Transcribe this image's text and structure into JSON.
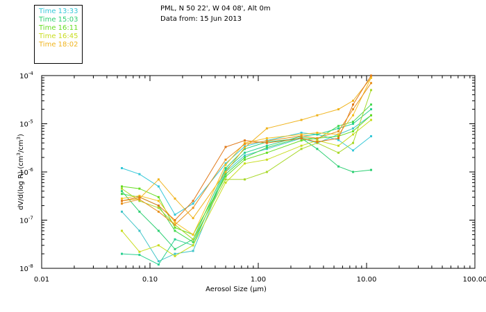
{
  "legend": [
    {
      "label": "Time 13:33",
      "color": "#35c8d8"
    },
    {
      "label": "Time 15:03",
      "color": "#2ccf72"
    },
    {
      "label": "Time 16:11",
      "color": "#66dd22"
    },
    {
      "label": "Time 16:45",
      "color": "#c8dc1e"
    },
    {
      "label": "Time 18:02",
      "color": "#f0b41e"
    }
  ],
  "header": {
    "location": "PML, N 50 22', W 04 08', Alt 0m",
    "date_line": "Data from: 15 Jun 2013"
  },
  "chart_data": {
    "type": "line",
    "title": "PML, N 50 22', W 04 08', Alt 0m",
    "subtitle": "Data from: 15 Jun 2013",
    "xlabel": "Aerosol Size (μm)",
    "ylabel": "dV/d(log R) (cm³/cm³)",
    "xscale": "log",
    "yscale": "log",
    "xlim": [
      0.01,
      100
    ],
    "ylim": [
      1e-08,
      0.0001
    ],
    "x_ticks": [
      {
        "value": 0.01,
        "label": "0.01"
      },
      {
        "value": 0.1,
        "label": "0.10"
      },
      {
        "value": 1,
        "label": "1.00"
      },
      {
        "value": 10,
        "label": "10.00"
      },
      {
        "value": 100,
        "label": "100.00"
      }
    ],
    "y_ticks": [
      {
        "value": 1e-08,
        "label": "10",
        "exp": "-8"
      },
      {
        "value": 1e-07,
        "label": "10",
        "exp": "-7"
      },
      {
        "value": 1e-06,
        "label": "10",
        "exp": "-6"
      },
      {
        "value": 1e-05,
        "label": "10",
        "exp": "-5"
      },
      {
        "value": 0.0001,
        "label": "10",
        "exp": "-4"
      }
    ],
    "x": [
      0.055,
      0.08,
      0.12,
      0.17,
      0.25,
      0.5,
      0.75,
      1.2,
      2.5,
      3.5,
      5.5,
      7.5,
      11.0
    ],
    "series": [
      {
        "name": "Time 13:33 a",
        "color": "#35c8d8",
        "values": [
          1.2e-06,
          9e-07,
          5e-07,
          1.3e-07,
          2.2e-07,
          1.5e-06,
          3.4e-06,
          4.5e-06,
          6.5e-06,
          6e-06,
          4.6e-06,
          2.8e-06,
          5.5e-06
        ]
      },
      {
        "name": "Time 13:33 b",
        "color": "#3fc4c8",
        "values": [
          1.5e-07,
          6e-08,
          1.4e-08,
          2e-08,
          2.3e-08,
          1e-06,
          2.2e-06,
          3e-06,
          5e-06,
          4e-06,
          6e-06,
          8e-06,
          1.5e-05
        ]
      },
      {
        "name": "Time 15:03 a",
        "color": "#2ccf72",
        "values": [
          4e-07,
          1.5e-07,
          6e-08,
          2.5e-08,
          4e-08,
          1.2e-06,
          3e-06,
          4.2e-06,
          5e-06,
          3e-06,
          1.3e-06,
          1e-06,
          1.1e-06
        ]
      },
      {
        "name": "Time 15:03 b",
        "color": "#28d090",
        "values": [
          2e-08,
          1.9e-08,
          1.2e-08,
          4e-08,
          3e-08,
          1.1e-06,
          2.5e-06,
          3.5e-06,
          5.5e-06,
          6e-06,
          8e-06,
          1e-05,
          2e-05
        ]
      },
      {
        "name": "Time 16:11 a",
        "color": "#66dd22",
        "values": [
          5e-07,
          4.5e-07,
          3e-07,
          7e-08,
          5e-08,
          8e-07,
          1.8e-06,
          2.5e-06,
          4.5e-06,
          5e-06,
          5.5e-06,
          7e-06,
          1.5e-05
        ]
      },
      {
        "name": "Time 16:11 b",
        "color": "#44d84e",
        "values": [
          3.5e-07,
          3e-07,
          2e-07,
          6e-08,
          3.5e-08,
          9e-07,
          2e-06,
          3.2e-06,
          5.2e-06,
          4.8e-06,
          9e-06,
          1.1e-05,
          2.5e-05
        ]
      },
      {
        "name": "Time 16:45 a",
        "color": "#c8dc1e",
        "values": [
          6e-08,
          2.2e-08,
          3e-08,
          1.8e-08,
          3e-08,
          6e-07,
          1.5e-06,
          1.8e-06,
          3.5e-06,
          4.5e-06,
          3.5e-06,
          6e-06,
          1.2e-05
        ]
      },
      {
        "name": "Time 16:45 b",
        "color": "#a8d82a",
        "values": [
          4.5e-07,
          2.5e-07,
          1.8e-07,
          8e-08,
          4e-08,
          7e-07,
          7e-07,
          1e-06,
          3e-06,
          4e-06,
          2.5e-06,
          4e-06,
          5e-05
        ]
      },
      {
        "name": "Time 18:02 a",
        "color": "#f0b41e",
        "values": [
          2.5e-07,
          2.8e-07,
          7e-07,
          2.8e-07,
          1.1e-07,
          1e-06,
          3.2e-06,
          8e-06,
          1.2e-05,
          1.5e-05,
          2e-05,
          3e-05,
          9e-05
        ]
      },
      {
        "name": "Time 18:02 b",
        "color": "#f5c020",
        "values": [
          2.8e-07,
          3.2e-07,
          2.5e-07,
          9e-08,
          5e-08,
          1.4e-06,
          4e-06,
          5e-06,
          6e-06,
          6.5e-06,
          6e-06,
          1.5e-05,
          9e-05
        ]
      },
      {
        "name": "Time 18:02 c",
        "color": "#e07818",
        "values": [
          2.5e-07,
          3e-07,
          2e-07,
          1e-07,
          2.5e-07,
          3.3e-06,
          4.5e-06,
          4e-06,
          5e-06,
          4.2e-06,
          5e-06,
          2.5e-05,
          0.0001
        ]
      },
      {
        "name": "Time 18:02 d",
        "color": "#e8901c",
        "values": [
          2.2e-07,
          2.7e-07,
          1.5e-07,
          8e-08,
          1.8e-07,
          1.8e-06,
          3.8e-06,
          4.4e-06,
          5.6e-06,
          5e-06,
          7e-06,
          2e-05,
          7e-05
        ]
      }
    ]
  }
}
